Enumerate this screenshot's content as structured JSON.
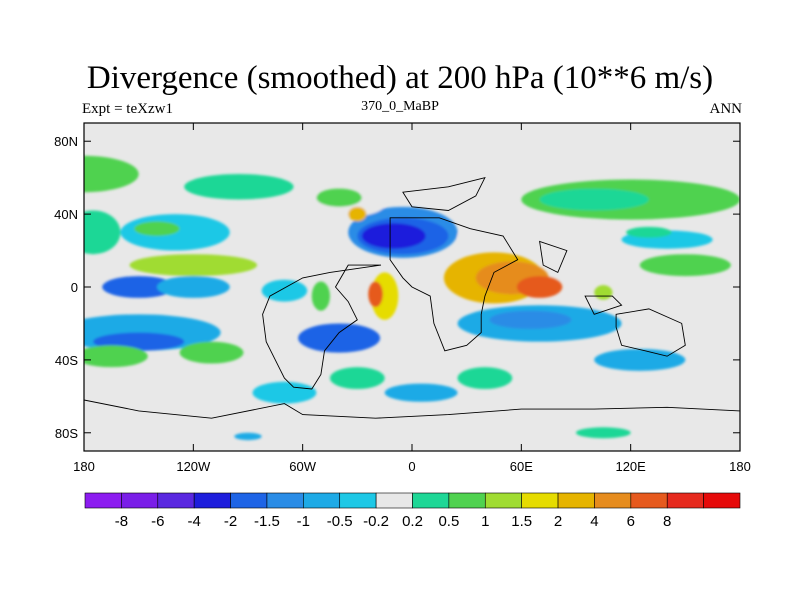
{
  "chart_data": {
    "type": "contour_map",
    "title": "Divergence (smoothed) at 200 hPa (10**6 m/s)",
    "left_label": "Expt = teXzw1",
    "center_label": "370_0_MaBP",
    "right_label": "ANN",
    "x_range": [
      -180,
      180
    ],
    "y_range": [
      -90,
      90
    ],
    "x_ticks": [
      {
        "value": -180,
        "label": "180"
      },
      {
        "value": -120,
        "label": "120W"
      },
      {
        "value": -60,
        "label": "60W"
      },
      {
        "value": 0,
        "label": "0"
      },
      {
        "value": 60,
        "label": "60E"
      },
      {
        "value": 120,
        "label": "120E"
      },
      {
        "value": 180,
        "label": "180"
      }
    ],
    "y_ticks": [
      {
        "value": 80,
        "label": "80N"
      },
      {
        "value": 40,
        "label": "40N"
      },
      {
        "value": 0,
        "label": "0"
      },
      {
        "value": -40,
        "label": "40S"
      },
      {
        "value": -80,
        "label": "80S"
      }
    ],
    "colorbar": {
      "colors": [
        "#8c1cf0",
        "#7a1ee8",
        "#5a28e0",
        "#1e1edc",
        "#1e64e6",
        "#2a8ce6",
        "#1eaae6",
        "#1ec8e6",
        "#e8e8e8",
        "#1ed796",
        "#50d250",
        "#a0dc32",
        "#e6dc00",
        "#e6b400",
        "#e68c1e",
        "#e65a1e",
        "#e62a1e",
        "#e60a0a"
      ],
      "labels": [
        "-8",
        "-6",
        "-4",
        "-2",
        "-1.5",
        "-1",
        "-0.5",
        "-0.2",
        "0.2",
        "0.5",
        "1",
        "1.5",
        "2",
        "4",
        "6",
        "8"
      ]
    },
    "field_blobs": [
      {
        "lon": -180,
        "lat": 62,
        "w": 60,
        "h": 10,
        "level": 10
      },
      {
        "lon": -95,
        "lat": 55,
        "w": 60,
        "h": 7,
        "level": 9
      },
      {
        "lon": 120,
        "lat": 48,
        "w": 120,
        "h": 11,
        "level": 10
      },
      {
        "lon": 100,
        "lat": 48,
        "w": 60,
        "h": 6,
        "level": 9
      },
      {
        "lon": -175,
        "lat": 30,
        "w": 30,
        "h": 12,
        "level": 9
      },
      {
        "lon": -130,
        "lat": 30,
        "w": 60,
        "h": 10,
        "level": 7
      },
      {
        "lon": -140,
        "lat": 32,
        "w": 25,
        "h": 4,
        "level": 10
      },
      {
        "lon": -5,
        "lat": 30,
        "w": 60,
        "h": 14,
        "level": 5
      },
      {
        "lon": -5,
        "lat": 28,
        "w": 50,
        "h": 10,
        "level": 4
      },
      {
        "lon": -10,
        "lat": 28,
        "w": 35,
        "h": 7,
        "level": 3
      },
      {
        "lon": -40,
        "lat": 45,
        "w": 50,
        "h": 7,
        "level": 8
      },
      {
        "lon": -40,
        "lat": 49,
        "w": 25,
        "h": 5,
        "level": 10
      },
      {
        "lon": 60,
        "lat": 28,
        "w": 70,
        "h": 6,
        "level": 8
      },
      {
        "lon": 140,
        "lat": 26,
        "w": 50,
        "h": 5,
        "level": 7
      },
      {
        "lon": 130,
        "lat": 30,
        "w": 25,
        "h": 3,
        "level": 9
      },
      {
        "lon": -30,
        "lat": 40,
        "w": 10,
        "h": 4,
        "level": 13
      },
      {
        "lon": -120,
        "lat": 12,
        "w": 70,
        "h": 6,
        "level": 11
      },
      {
        "lon": 150,
        "lat": 12,
        "w": 50,
        "h": 6,
        "level": 10
      },
      {
        "lon": -150,
        "lat": 0,
        "w": 40,
        "h": 6,
        "level": 4
      },
      {
        "lon": -120,
        "lat": 0,
        "w": 40,
        "h": 6,
        "level": 6
      },
      {
        "lon": -70,
        "lat": -2,
        "w": 25,
        "h": 6,
        "level": 7
      },
      {
        "lon": 45,
        "lat": 5,
        "w": 55,
        "h": 14,
        "level": 13
      },
      {
        "lon": 55,
        "lat": 5,
        "w": 40,
        "h": 9,
        "level": 14
      },
      {
        "lon": 70,
        "lat": 0,
        "w": 25,
        "h": 6,
        "level": 15
      },
      {
        "lon": -15,
        "lat": -5,
        "w": 15,
        "h": 13,
        "level": 12
      },
      {
        "lon": -20,
        "lat": -4,
        "w": 8,
        "h": 7,
        "level": 15
      },
      {
        "lon": -50,
        "lat": -5,
        "w": 10,
        "h": 8,
        "level": 10
      },
      {
        "lon": 105,
        "lat": -3,
        "w": 10,
        "h": 4,
        "level": 11
      },
      {
        "lon": -150,
        "lat": -25,
        "w": 90,
        "h": 10,
        "level": 6
      },
      {
        "lon": -150,
        "lat": -30,
        "w": 50,
        "h": 5,
        "level": 4
      },
      {
        "lon": -40,
        "lat": -28,
        "w": 45,
        "h": 8,
        "level": 4
      },
      {
        "lon": 70,
        "lat": -20,
        "w": 90,
        "h": 10,
        "level": 6
      },
      {
        "lon": 65,
        "lat": -18,
        "w": 45,
        "h": 5,
        "level": 5
      },
      {
        "lon": 125,
        "lat": -40,
        "w": 50,
        "h": 6,
        "level": 6
      },
      {
        "lon": -165,
        "lat": -38,
        "w": 40,
        "h": 6,
        "level": 10
      },
      {
        "lon": -110,
        "lat": -36,
        "w": 35,
        "h": 6,
        "level": 10
      },
      {
        "lon": -30,
        "lat": -50,
        "w": 30,
        "h": 6,
        "level": 9
      },
      {
        "lon": 40,
        "lat": -50,
        "w": 30,
        "h": 6,
        "level": 9
      },
      {
        "lon": -70,
        "lat": -58,
        "w": 35,
        "h": 6,
        "level": 7
      },
      {
        "lon": 5,
        "lat": -58,
        "w": 40,
        "h": 5,
        "level": 6
      },
      {
        "lon": 110,
        "lat": -58,
        "w": 50,
        "h": 6,
        "level": 8
      },
      {
        "lon": -90,
        "lat": -82,
        "w": 15,
        "h": 2,
        "level": 6
      },
      {
        "lon": 105,
        "lat": -80,
        "w": 30,
        "h": 3,
        "level": 9
      }
    ],
    "land_outlines": [
      [
        [
          -17,
          12
        ],
        [
          -35,
          12
        ],
        [
          -42,
          0
        ],
        [
          -35,
          -8
        ],
        [
          -30,
          -18
        ],
        [
          -40,
          -25
        ],
        [
          -48,
          -35
        ],
        [
          -50,
          -48
        ],
        [
          -55,
          -56
        ],
        [
          -65,
          -55
        ],
        [
          -70,
          -50
        ],
        [
          -75,
          -40
        ],
        [
          -80,
          -30
        ],
        [
          -82,
          -15
        ],
        [
          -78,
          -5
        ],
        [
          -60,
          5
        ],
        [
          -45,
          8
        ],
        [
          -17,
          12
        ]
      ],
      [
        [
          -12,
          38
        ],
        [
          15,
          38
        ],
        [
          32,
          32
        ],
        [
          50,
          28
        ],
        [
          58,
          15
        ],
        [
          45,
          8
        ],
        [
          40,
          -5
        ],
        [
          38,
          -15
        ],
        [
          38,
          -25
        ],
        [
          30,
          -32
        ],
        [
          18,
          -35
        ],
        [
          12,
          -20
        ],
        [
          10,
          -5
        ],
        [
          0,
          0
        ],
        [
          -5,
          5
        ],
        [
          -12,
          15
        ],
        [
          -12,
          38
        ]
      ],
      [
        [
          -5,
          52
        ],
        [
          20,
          55
        ],
        [
          40,
          60
        ],
        [
          35,
          50
        ],
        [
          20,
          42
        ],
        [
          0,
          44
        ],
        [
          -5,
          52
        ]
      ],
      [
        [
          70,
          25
        ],
        [
          85,
          20
        ],
        [
          80,
          8
        ],
        [
          72,
          12
        ],
        [
          70,
          25
        ]
      ],
      [
        [
          95,
          -5
        ],
        [
          110,
          -5
        ],
        [
          115,
          -10
        ],
        [
          100,
          -15
        ],
        [
          95,
          -5
        ]
      ],
      [
        [
          112,
          -15
        ],
        [
          130,
          -12
        ],
        [
          148,
          -20
        ],
        [
          150,
          -32
        ],
        [
          140,
          -38
        ],
        [
          128,
          -35
        ],
        [
          115,
          -32
        ],
        [
          112,
          -22
        ],
        [
          112,
          -15
        ]
      ],
      [
        [
          -180,
          -62
        ],
        [
          -150,
          -68
        ],
        [
          -110,
          -72
        ],
        [
          -70,
          -64
        ],
        [
          -60,
          -70
        ],
        [
          -20,
          -72
        ],
        [
          20,
          -70
        ],
        [
          60,
          -67
        ],
        [
          100,
          -67
        ],
        [
          140,
          -66
        ],
        [
          180,
          -68
        ],
        [
          180,
          -90
        ],
        [
          -180,
          -90
        ],
        [
          -180,
          -62
        ]
      ]
    ]
  }
}
